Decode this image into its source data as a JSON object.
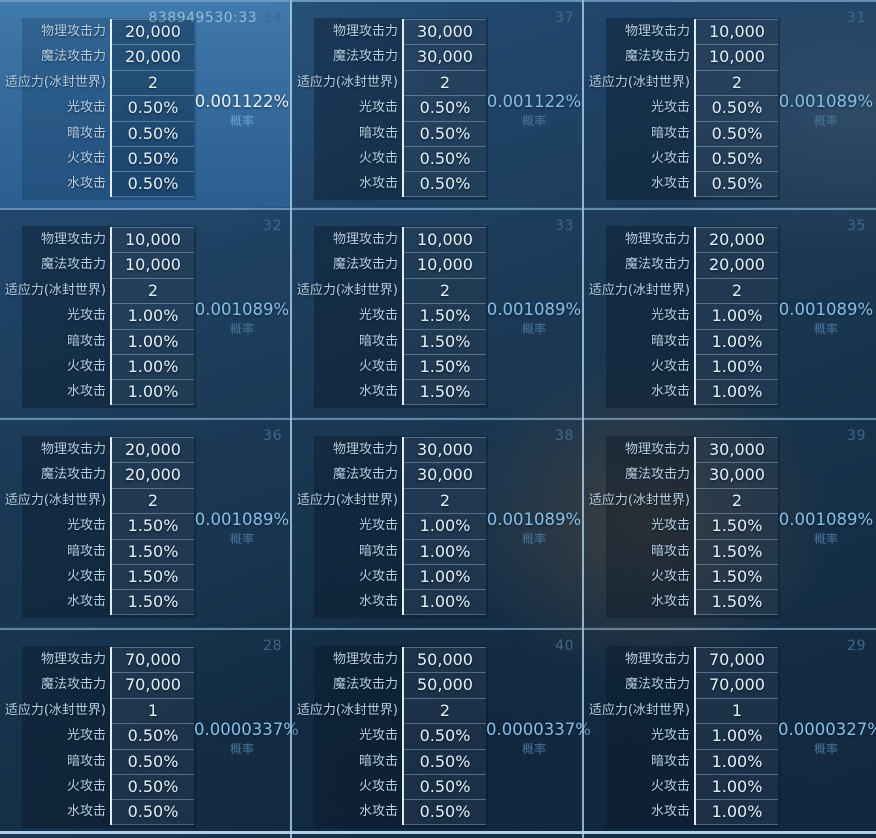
{
  "labels": {
    "probability": "概率"
  },
  "stat_labels": [
    "物理攻击力",
    "魔法攻击力",
    "适应力(冰封世界)",
    "光攻击",
    "暗攻击",
    "火攻击",
    "水攻击"
  ],
  "panels": [
    {
      "id": "34",
      "header_extra": "838949530:33",
      "selected": true,
      "values": [
        "20,000",
        "20,000",
        "2",
        "0.50%",
        "0.50%",
        "0.50%",
        "0.50%"
      ],
      "probability": "0.001122%"
    },
    {
      "id": "37",
      "values": [
        "30,000",
        "30,000",
        "2",
        "0.50%",
        "0.50%",
        "0.50%",
        "0.50%"
      ],
      "probability": "0.001122%"
    },
    {
      "id": "31",
      "values": [
        "10,000",
        "10,000",
        "2",
        "0.50%",
        "0.50%",
        "0.50%",
        "0.50%"
      ],
      "probability": "0.001089%"
    },
    {
      "id": "32",
      "values": [
        "10,000",
        "10,000",
        "2",
        "1.00%",
        "1.00%",
        "1.00%",
        "1.00%"
      ],
      "probability": "0.001089%"
    },
    {
      "id": "33",
      "values": [
        "10,000",
        "10,000",
        "2",
        "1.50%",
        "1.50%",
        "1.50%",
        "1.50%"
      ],
      "probability": "0.001089%"
    },
    {
      "id": "35",
      "values": [
        "20,000",
        "20,000",
        "2",
        "1.00%",
        "1.00%",
        "1.00%",
        "1.00%"
      ],
      "probability": "0.001089%"
    },
    {
      "id": "36",
      "values": [
        "20,000",
        "20,000",
        "2",
        "1.50%",
        "1.50%",
        "1.50%",
        "1.50%"
      ],
      "probability": "0.001089%"
    },
    {
      "id": "38",
      "values": [
        "30,000",
        "30,000",
        "2",
        "1.00%",
        "1.00%",
        "1.00%",
        "1.00%"
      ],
      "probability": "0.001089%"
    },
    {
      "id": "39",
      "values": [
        "30,000",
        "30,000",
        "2",
        "1.50%",
        "1.50%",
        "1.50%",
        "1.50%"
      ],
      "probability": "0.001089%"
    },
    {
      "id": "28",
      "values": [
        "70,000",
        "70,000",
        "1",
        "0.50%",
        "0.50%",
        "0.50%",
        "0.50%"
      ],
      "probability": "0.0000337%"
    },
    {
      "id": "40",
      "values": [
        "50,000",
        "50,000",
        "2",
        "0.50%",
        "0.50%",
        "0.50%",
        "0.50%"
      ],
      "probability": "0.0000337%"
    },
    {
      "id": "29",
      "values": [
        "70,000",
        "70,000",
        "1",
        "1.00%",
        "1.00%",
        "1.00%",
        "1.00%"
      ],
      "probability": "0.0000327%"
    }
  ],
  "colors": {
    "divider": "#a5c8e0",
    "selected_panel_top": "#4079ab",
    "selected_panel_bottom": "#2c5e90",
    "probability_text": "#86bfe9",
    "value_text": "#e2f0fa",
    "label_text": "#b6cfe3",
    "panel_id_text": "#40688c"
  }
}
